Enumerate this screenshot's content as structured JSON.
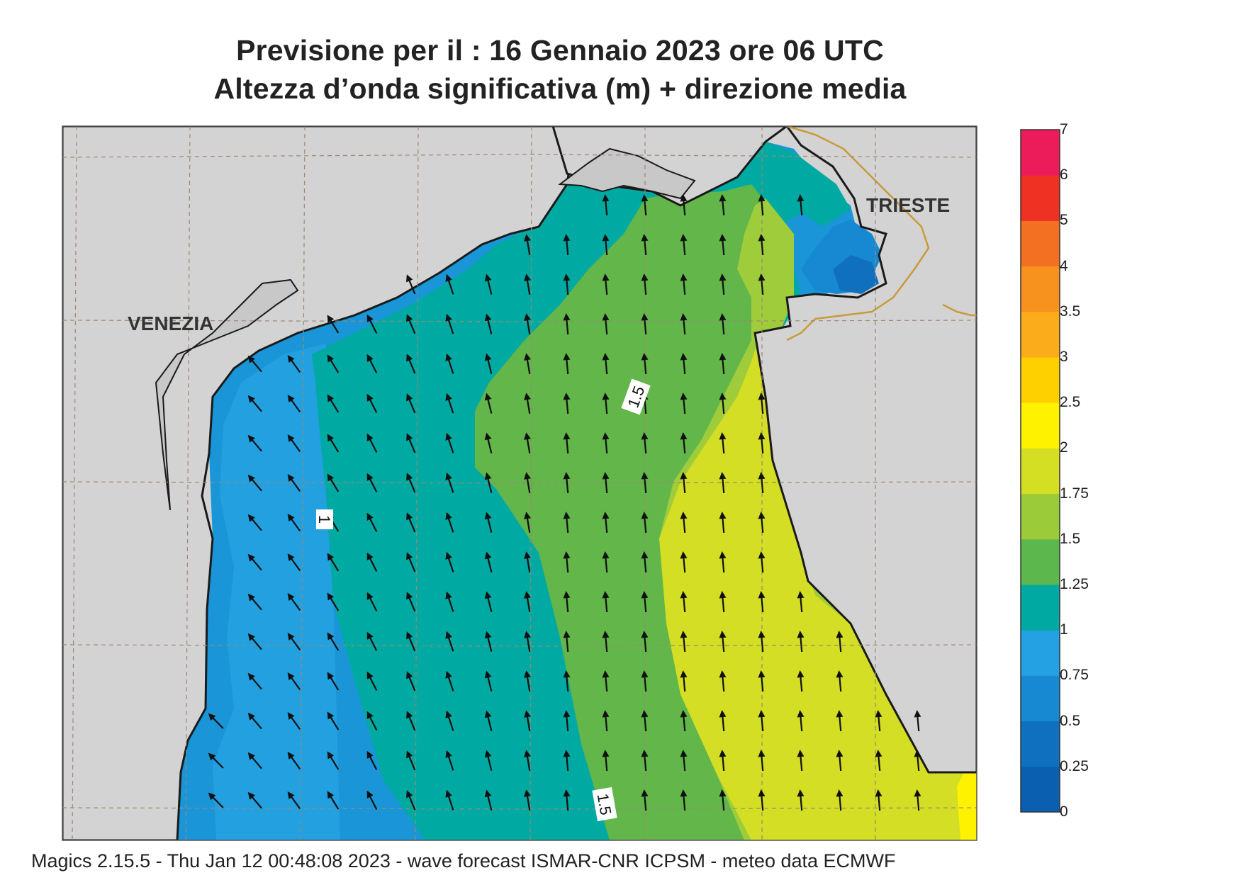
{
  "title": {
    "line1": "Previsione per il  :  16  Gennaio  2023   ore 06 UTC",
    "line2": "Altezza d’onda significativa (m) + direzione media"
  },
  "map": {
    "labels": {
      "venezia": "VENEZIA",
      "trieste": "TRIESTE"
    },
    "contour_labels": [
      "1.5",
      "1",
      "1.5"
    ],
    "arrow_direction": "north to north-west"
  },
  "colorbar": {
    "levels": [
      "0",
      "0.25",
      "0.5",
      "0.75",
      "1",
      "1.25",
      "1.5",
      "1.75",
      "2",
      "2.5",
      "3",
      "3.5",
      "4",
      "5",
      "6",
      "7"
    ],
    "colors": [
      "#0b5fb0",
      "#1070c0",
      "#1788d2",
      "#24a1e2",
      "#00a9a2",
      "#5cb84c",
      "#9ccb3a",
      "#d4de22",
      "#fff200",
      "#ffd000",
      "#fbac1a",
      "#f7921e",
      "#f36f21",
      "#ef3124",
      "#ec1c5b"
    ]
  },
  "footer": "Magics 2.15.5 - Thu Jan 12 00:48:08 2023 - wave forecast  ISMAR-CNR  ICPSM - meteo data    ECMWF"
}
